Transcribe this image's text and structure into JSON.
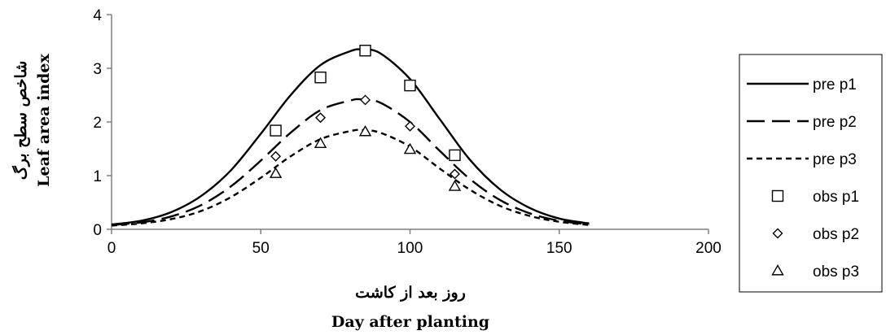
{
  "chart_data": {
    "type": "line",
    "title": "",
    "xlabel_lines": [
      "روز بعد از کاشت",
      "Day after planting"
    ],
    "ylabel_lines": [
      "شاخص سطح برگ",
      "Leaf area index"
    ],
    "xlim": [
      0,
      200
    ],
    "ylim": [
      0,
      4
    ],
    "x_ticks": [
      0,
      50,
      100,
      150,
      200
    ],
    "y_ticks": [
      0,
      1,
      2,
      3,
      4
    ],
    "grid": false,
    "legend": "right",
    "series": [
      {
        "name": "pre p1",
        "kind": "line",
        "style": "solid",
        "x": [
          0,
          10,
          20,
          30,
          40,
          50,
          60,
          70,
          80,
          84,
          90,
          100,
          110,
          120,
          130,
          140,
          150,
          160
        ],
        "y": [
          0.09,
          0.16,
          0.32,
          0.62,
          1.1,
          1.78,
          2.5,
          3.06,
          3.32,
          3.35,
          3.28,
          2.8,
          2.05,
          1.3,
          0.75,
          0.4,
          0.2,
          0.11
        ]
      },
      {
        "name": "pre p2",
        "kind": "line",
        "style": "long-dash",
        "x": [
          0,
          10,
          20,
          30,
          40,
          50,
          60,
          70,
          80,
          84,
          90,
          100,
          110,
          120,
          130,
          140,
          150,
          160
        ],
        "y": [
          0.08,
          0.13,
          0.24,
          0.45,
          0.8,
          1.28,
          1.8,
          2.22,
          2.4,
          2.42,
          2.36,
          2.0,
          1.46,
          0.94,
          0.55,
          0.3,
          0.16,
          0.09
        ]
      },
      {
        "name": "pre p3",
        "kind": "line",
        "style": "short-dash",
        "x": [
          0,
          10,
          20,
          30,
          40,
          50,
          60,
          70,
          80,
          84,
          90,
          100,
          110,
          120,
          130,
          140,
          150,
          160
        ],
        "y": [
          0.07,
          0.11,
          0.19,
          0.34,
          0.6,
          0.96,
          1.36,
          1.68,
          1.83,
          1.85,
          1.8,
          1.54,
          1.13,
          0.74,
          0.44,
          0.25,
          0.14,
          0.08
        ]
      },
      {
        "name": "obs p1",
        "kind": "marker",
        "marker": "square",
        "x": [
          55,
          70,
          85,
          100,
          115
        ],
        "y": [
          1.84,
          2.83,
          3.33,
          2.68,
          1.38
        ]
      },
      {
        "name": "obs p2",
        "kind": "marker",
        "marker": "diamond",
        "x": [
          55,
          70,
          85,
          100,
          115
        ],
        "y": [
          1.36,
          2.08,
          2.41,
          1.92,
          1.03
        ]
      },
      {
        "name": "obs p3",
        "kind": "marker",
        "marker": "triangle",
        "x": [
          55,
          70,
          85,
          100,
          115
        ],
        "y": [
          1.04,
          1.6,
          1.82,
          1.49,
          0.8
        ]
      }
    ],
    "colors": {
      "line": "#000000",
      "axis": "#808080",
      "background": "#ffffff"
    }
  }
}
